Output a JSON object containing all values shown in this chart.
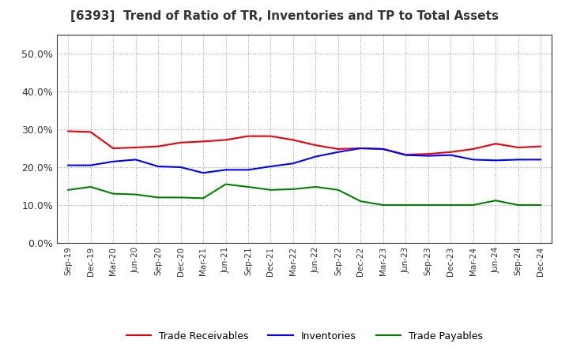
{
  "title": "[6393]  Trend of Ratio of TR, Inventories and TP to Total Assets",
  "x_labels": [
    "Sep-19",
    "Dec-19",
    "Mar-20",
    "Jun-20",
    "Sep-20",
    "Dec-20",
    "Mar-21",
    "Jun-21",
    "Sep-21",
    "Dec-21",
    "Mar-22",
    "Jun-22",
    "Sep-22",
    "Dec-22",
    "Mar-23",
    "Jun-23",
    "Sep-23",
    "Dec-23",
    "Mar-24",
    "Jun-24",
    "Sep-24",
    "Dec-24"
  ],
  "trade_receivables": [
    0.295,
    0.293,
    0.25,
    0.252,
    0.255,
    0.265,
    0.268,
    0.272,
    0.282,
    0.282,
    0.272,
    0.258,
    0.248,
    0.25,
    0.248,
    0.233,
    0.235,
    0.24,
    0.248,
    0.262,
    0.252,
    0.255
  ],
  "inventories": [
    0.205,
    0.205,
    0.215,
    0.22,
    0.202,
    0.2,
    0.185,
    0.193,
    0.193,
    0.202,
    0.21,
    0.228,
    0.24,
    0.25,
    0.248,
    0.232,
    0.23,
    0.232,
    0.22,
    0.218,
    0.22,
    0.22
  ],
  "trade_payables": [
    0.14,
    0.148,
    0.13,
    0.128,
    0.12,
    0.12,
    0.118,
    0.155,
    0.148,
    0.14,
    0.142,
    0.148,
    0.14,
    0.11,
    0.1,
    0.1,
    0.1,
    0.1,
    0.1,
    0.112,
    0.1,
    0.1
  ],
  "ylim": [
    0.0,
    0.55
  ],
  "yticks": [
    0.0,
    0.1,
    0.2,
    0.3,
    0.4,
    0.5
  ],
  "line_color_tr": "#e8000d",
  "line_color_inv": "#0000ff",
  "line_color_tp": "#008000",
  "background_color": "#ffffff",
  "grid_color": "#999999",
  "legend_labels": [
    "Trade Receivables",
    "Inventories",
    "Trade Payables"
  ]
}
